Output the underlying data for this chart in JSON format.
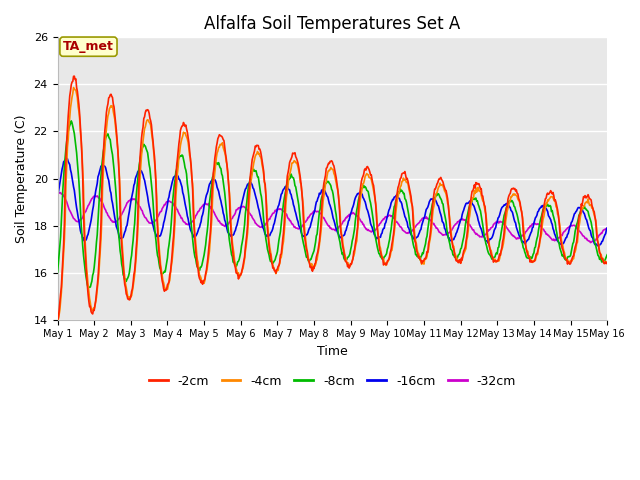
{
  "title": "Alfalfa Soil Temperatures Set A",
  "xlabel": "Time",
  "ylabel": "Soil Temperature (C)",
  "ylim": [
    14,
    26
  ],
  "xlim": [
    0,
    15
  ],
  "xtick_labels": [
    "May 1",
    "May 2",
    "May 3",
    "May 4",
    "May 5",
    "May 6",
    "May 7",
    "May 8",
    "May 9",
    "May 10",
    "May 11",
    "May 12",
    "May 13",
    "May 14",
    "May 15",
    "May 16"
  ],
  "ytick_values": [
    14,
    16,
    18,
    20,
    22,
    24,
    26
  ],
  "annotation": "TA_met",
  "annotation_color": "#aa0000",
  "plot_bg_color": "#e8e8e8",
  "fig_bg_color": "#ffffff",
  "line_colors": {
    "-2cm": "#ff2200",
    "-4cm": "#ff8800",
    "-8cm": "#00bb00",
    "-16cm": "#0000ee",
    "-32cm": "#cc00cc"
  },
  "legend_labels": [
    "-2cm",
    "-4cm",
    "-8cm",
    "-16cm",
    "-32cm"
  ]
}
